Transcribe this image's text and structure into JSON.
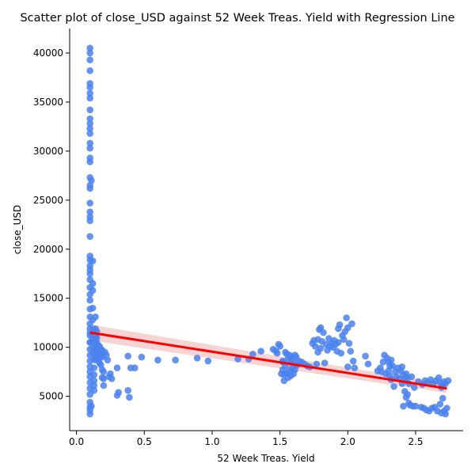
{
  "chart_data": {
    "type": "scatter",
    "title": "Scatter plot of close_USD against 52 Week Treas. Yield with Regression Line",
    "xlabel": "52 Week Treas. Yield",
    "ylabel": "close_USD",
    "xlim": [
      -0.05,
      2.85
    ],
    "ylim": [
      1500,
      42500
    ],
    "xticks": [
      0.0,
      0.5,
      1.0,
      1.5,
      2.0,
      2.5
    ],
    "xtick_labels": [
      "0.0",
      "0.5",
      "1.0",
      "1.5",
      "2.0",
      "2.5"
    ],
    "yticks": [
      5000,
      10000,
      15000,
      20000,
      25000,
      30000,
      35000,
      40000
    ],
    "ytick_labels": [
      "5000",
      "10000",
      "15000",
      "20000",
      "25000",
      "30000",
      "35000",
      "40000"
    ],
    "grid": false,
    "point_color": "#4a81ed",
    "line_color": "#ff0000",
    "band_color": "#f2b8b8",
    "regression": {
      "x": [
        0.1,
        2.73
      ],
      "y": [
        11500,
        5800
      ],
      "ci_lower": [
        10700,
        5350
      ],
      "ci_upper": [
        12300,
        6250
      ]
    },
    "points": {
      "x": [
        0.1,
        0.1,
        0.1,
        0.1,
        0.1,
        0.1,
        0.1,
        0.1,
        0.1,
        0.1,
        0.1,
        0.1,
        0.1,
        0.1,
        0.1,
        0.1,
        0.1,
        0.1,
        0.1,
        0.1,
        0.1,
        0.1,
        0.1,
        0.1,
        0.1,
        0.1,
        0.1,
        0.1,
        0.1,
        0.1,
        0.1,
        0.1,
        0.1,
        0.1,
        0.1,
        0.1,
        0.1,
        0.1,
        0.1,
        0.1,
        0.1,
        0.1,
        0.1,
        0.1,
        0.1,
        0.1,
        0.1,
        0.1,
        0.1,
        0.1,
        0.1,
        0.1,
        0.1,
        0.11,
        0.1,
        0.11,
        0.1,
        0.12,
        0.12,
        0.12,
        0.12,
        0.12,
        0.12,
        0.12,
        0.12,
        0.12,
        0.13,
        0.13,
        0.13,
        0.13,
        0.13,
        0.13,
        0.14,
        0.14,
        0.14,
        0.14,
        0.14,
        0.14,
        0.14,
        0.14,
        0.15,
        0.15,
        0.15,
        0.15,
        0.15,
        0.16,
        0.16,
        0.16,
        0.17,
        0.17,
        0.17,
        0.18,
        0.18,
        0.18,
        0.19,
        0.19,
        0.19,
        0.19,
        0.2,
        0.2,
        0.2,
        0.21,
        0.22,
        0.23,
        0.24,
        0.25,
        0.26,
        0.3,
        0.3,
        0.31,
        0.38,
        0.38,
        0.39,
        0.4,
        0.43,
        0.48,
        0.6,
        0.73,
        0.89,
        0.97,
        1.19,
        1.27,
        1.3,
        1.36,
        1.45,
        1.47,
        1.48,
        1.49,
        1.5,
        1.51,
        1.52,
        1.52,
        1.52,
        1.53,
        1.53,
        1.54,
        1.54,
        1.55,
        1.55,
        1.56,
        1.56,
        1.57,
        1.57,
        1.58,
        1.58,
        1.59,
        1.59,
        1.6,
        1.6,
        1.61,
        1.61,
        1.62,
        1.63,
        1.64,
        1.66,
        1.68,
        1.7,
        1.72,
        1.74,
        1.75,
        1.76,
        1.77,
        1.78,
        1.78,
        1.79,
        1.8,
        1.8,
        1.81,
        1.82,
        1.83,
        1.84,
        1.85,
        1.86,
        1.87,
        1.88,
        1.89,
        1.9,
        1.91,
        1.92,
        1.93,
        1.93,
        1.94,
        1.95,
        1.96,
        1.97,
        1.98,
        1.99,
        2.0,
        2.0,
        2.01,
        2.02,
        2.03,
        2.04,
        2.05,
        2.13,
        2.15,
        2.22,
        2.24,
        2.25,
        2.26,
        2.27,
        2.28,
        2.29,
        2.3,
        2.3,
        2.31,
        2.31,
        2.32,
        2.32,
        2.33,
        2.34,
        2.35,
        2.36,
        2.37,
        2.38,
        2.39,
        2.4,
        2.4,
        2.41,
        2.41,
        2.42,
        2.42,
        2.43,
        2.43,
        2.44,
        2.44,
        2.45,
        2.45,
        2.46,
        2.47,
        2.48,
        2.49,
        2.5,
        2.52,
        2.54,
        2.55,
        2.56,
        2.57,
        2.58,
        2.59,
        2.6,
        2.61,
        2.62,
        2.63,
        2.64,
        2.65,
        2.66,
        2.67,
        2.68,
        2.68,
        2.69,
        2.69,
        2.7,
        2.7,
        2.71,
        2.71,
        2.72,
        2.72,
        2.73,
        2.74
      ],
      "y": [
        40500,
        40000,
        39300,
        38200,
        36900,
        36500,
        35900,
        35400,
        34200,
        33300,
        32800,
        32300,
        31800,
        30800,
        30300,
        29300,
        28900,
        27300,
        26500,
        26200,
        24700,
        23800,
        23300,
        22900,
        21300,
        19300,
        18900,
        18300,
        17900,
        17500,
        16900,
        16100,
        15400,
        14800,
        13900,
        13100,
        12400,
        11900,
        11200,
        10500,
        9800,
        9200,
        8600,
        8000,
        7500,
        7000,
        6400,
        5800,
        5200,
        4400,
        3900,
        3600,
        3200,
        27000,
        11500,
        4000,
        10500,
        18800,
        16500,
        15800,
        14000,
        12800,
        11800,
        10900,
        10000,
        9400,
        8800,
        7900,
        7200,
        6600,
        6100,
        5600,
        13100,
        11900,
        11300,
        10800,
        10400,
        9900,
        9300,
        8700,
        11600,
        11000,
        10500,
        9600,
        8900,
        10200,
        9500,
        8800,
        10100,
        9200,
        8400,
        9800,
        9100,
        8200,
        9700,
        9000,
        7700,
        6900,
        7500,
        6800,
        6100,
        9500,
        9200,
        8700,
        7000,
        7300,
        6800,
        7900,
        5100,
        5400,
        9100,
        5600,
        4900,
        7900,
        7900,
        9000,
        8700,
        8700,
        8900,
        8600,
        8800,
        8800,
        9300,
        9600,
        9800,
        9600,
        9400,
        10300,
        10100,
        7300,
        8600,
        7700,
        8500,
        7200,
        6600,
        9500,
        8100,
        9300,
        7400,
        8800,
        6900,
        9200,
        7600,
        8600,
        7100,
        9000,
        7900,
        8400,
        7300,
        9200,
        7700,
        9000,
        8200,
        8600,
        8500,
        8300,
        8100,
        8000,
        10400,
        10700,
        10100,
        8300,
        10800,
        9500,
        11800,
        12000,
        9900,
        10600,
        11500,
        8400,
        10300,
        9700,
        10900,
        10100,
        10400,
        10000,
        10700,
        10300,
        9600,
        10500,
        11900,
        12300,
        9400,
        11200,
        10800,
        11600,
        13000,
        12000,
        8000,
        10400,
        9600,
        12400,
        8600,
        7900,
        9100,
        8300,
        7600,
        7900,
        7500,
        8500,
        9200,
        7300,
        8900,
        7600,
        8500,
        8100,
        7100,
        8700,
        6700,
        8100,
        6000,
        7500,
        7000,
        7900,
        6800,
        7600,
        6300,
        8000,
        4000,
        7200,
        5500,
        6800,
        4900,
        7300,
        5200,
        6900,
        4300,
        6300,
        4100,
        7000,
        4000,
        5900,
        4000,
        6500,
        3900,
        6200,
        3800,
        6600,
        3600,
        6400,
        3500,
        6700,
        3800,
        6300,
        3900,
        6600,
        3500,
        6900,
        4200,
        6400,
        3300,
        5900,
        4800,
        6100,
        3500,
        6500,
        3200,
        6300,
        3800,
        6600
      ]
    }
  }
}
